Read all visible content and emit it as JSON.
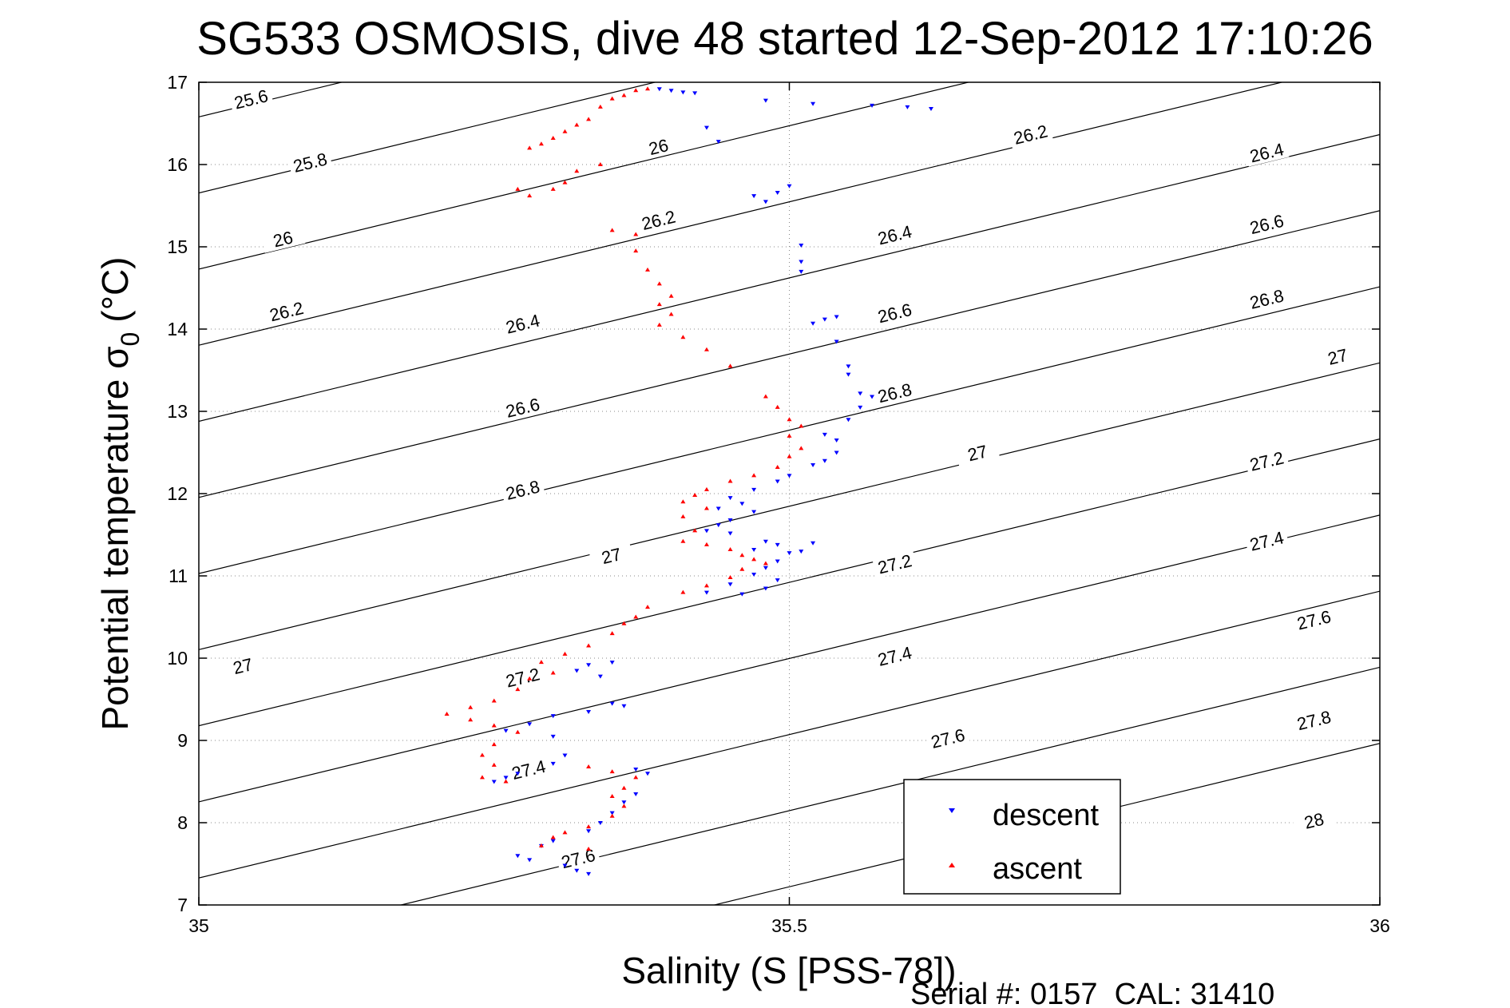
{
  "chart_data": {
    "type": "scatter",
    "title": "SG533 OSMOSIS, dive 48 started 12-Sep-2012 17:10:26",
    "xlabel": "Salinity (S [PSS-78])",
    "ylabel_main": "Potential temperature σ",
    "ylabel_sub": "0",
    "ylabel_unit": "(°C)",
    "footer": "Serial #: 0157  CAL: 31410",
    "xlim": [
      35,
      36
    ],
    "ylim": [
      7,
      17
    ],
    "x_ticks": [
      35,
      35.5,
      36
    ],
    "x_tick_labels": [
      "35",
      "35.5",
      "36"
    ],
    "y_ticks": [
      7,
      8,
      9,
      10,
      11,
      12,
      13,
      14,
      15,
      16,
      17
    ],
    "y_tick_labels": [
      "7",
      "8",
      "9",
      "10",
      "11",
      "12",
      "13",
      "14",
      "15",
      "16",
      "17"
    ],
    "grid": true,
    "legend_position": "bottom-right",
    "colors": {
      "descent": "#0000ff",
      "ascent": "#ff0000",
      "contour": "#000000"
    },
    "density_contours": {
      "levels": [
        25.6,
        25.8,
        26,
        26.2,
        26.4,
        26.6,
        26.8,
        27,
        27.2,
        27.4,
        27.6,
        27.8,
        28
      ],
      "labels": [
        {
          "text": "25.6",
          "x": 35.045,
          "y": 16.75
        },
        {
          "text": "25.8",
          "x": 35.095,
          "y": 15.98
        },
        {
          "text": "26",
          "x": 35.072,
          "y": 15.05
        },
        {
          "text": "26.2",
          "x": 35.075,
          "y": 14.17
        },
        {
          "text": "26",
          "x": 35.39,
          "y": 16.17
        },
        {
          "text": "26.2",
          "x": 35.39,
          "y": 15.28
        },
        {
          "text": "26.4",
          "x": 35.275,
          "y": 14.02
        },
        {
          "text": "26.6",
          "x": 35.275,
          "y": 13.0
        },
        {
          "text": "26.8",
          "x": 35.275,
          "y": 12.0
        },
        {
          "text": "27",
          "x": 35.35,
          "y": 11.2
        },
        {
          "text": "26.2",
          "x": 35.705,
          "y": 16.32
        },
        {
          "text": "26.4",
          "x": 35.59,
          "y": 15.1
        },
        {
          "text": "26.6",
          "x": 35.59,
          "y": 14.15
        },
        {
          "text": "26.8",
          "x": 35.59,
          "y": 13.18
        },
        {
          "text": "27",
          "x": 35.66,
          "y": 12.45
        },
        {
          "text": "27.2",
          "x": 35.59,
          "y": 11.1
        },
        {
          "text": "27.4",
          "x": 35.59,
          "y": 9.98
        },
        {
          "text": "27.6",
          "x": 35.635,
          "y": 8.98
        },
        {
          "text": "26.4",
          "x": 35.905,
          "y": 16.1
        },
        {
          "text": "26.6",
          "x": 35.905,
          "y": 15.23
        },
        {
          "text": "26.8",
          "x": 35.905,
          "y": 14.32
        },
        {
          "text": "27",
          "x": 35.965,
          "y": 13.62
        },
        {
          "text": "27.2",
          "x": 35.905,
          "y": 12.35
        },
        {
          "text": "27.4",
          "x": 35.905,
          "y": 11.38
        },
        {
          "text": "27.6",
          "x": 35.945,
          "y": 10.42
        },
        {
          "text": "27.8",
          "x": 35.945,
          "y": 9.2
        },
        {
          "text": "28",
          "x": 35.945,
          "y": 7.98
        },
        {
          "text": "27",
          "x": 35.038,
          "y": 9.86
        },
        {
          "text": "27.2",
          "x": 35.275,
          "y": 9.72
        },
        {
          "text": "27.4",
          "x": 35.28,
          "y": 8.6
        },
        {
          "text": "27.6",
          "x": 35.322,
          "y": 7.52
        }
      ]
    },
    "series": [
      {
        "name": "descent",
        "points": [
          [
            35.39,
            16.92
          ],
          [
            35.4,
            16.9
          ],
          [
            35.41,
            16.88
          ],
          [
            35.42,
            16.87
          ],
          [
            35.48,
            16.78
          ],
          [
            35.52,
            16.74
          ],
          [
            35.57,
            16.72
          ],
          [
            35.6,
            16.7
          ],
          [
            35.62,
            16.68
          ],
          [
            35.43,
            16.45
          ],
          [
            35.44,
            16.28
          ],
          [
            35.47,
            15.62
          ],
          [
            35.48,
            15.55
          ],
          [
            35.49,
            15.66
          ],
          [
            35.5,
            15.74
          ],
          [
            35.51,
            15.02
          ],
          [
            35.51,
            14.82
          ],
          [
            35.51,
            14.7
          ],
          [
            35.52,
            14.07
          ],
          [
            35.53,
            14.12
          ],
          [
            35.54,
            13.85
          ],
          [
            35.54,
            14.15
          ],
          [
            35.55,
            13.55
          ],
          [
            35.55,
            13.45
          ],
          [
            35.56,
            13.22
          ],
          [
            35.57,
            13.18
          ],
          [
            35.56,
            13.05
          ],
          [
            35.55,
            12.9
          ],
          [
            35.54,
            12.65
          ],
          [
            35.53,
            12.72
          ],
          [
            35.54,
            12.5
          ],
          [
            35.53,
            12.4
          ],
          [
            35.52,
            12.35
          ],
          [
            35.5,
            12.22
          ],
          [
            35.49,
            12.15
          ],
          [
            35.47,
            12.05
          ],
          [
            35.45,
            11.95
          ],
          [
            35.46,
            11.88
          ],
          [
            35.44,
            11.82
          ],
          [
            35.47,
            11.78
          ],
          [
            35.45,
            11.68
          ],
          [
            35.44,
            11.62
          ],
          [
            35.43,
            11.55
          ],
          [
            35.45,
            11.52
          ],
          [
            35.48,
            11.42
          ],
          [
            35.49,
            11.38
          ],
          [
            35.47,
            11.32
          ],
          [
            35.5,
            11.28
          ],
          [
            35.52,
            11.4
          ],
          [
            35.51,
            11.3
          ],
          [
            35.49,
            11.18
          ],
          [
            35.48,
            11.1
          ],
          [
            35.47,
            11.02
          ],
          [
            35.49,
            10.95
          ],
          [
            35.48,
            10.85
          ],
          [
            35.46,
            10.78
          ],
          [
            35.45,
            10.9
          ],
          [
            35.43,
            10.8
          ],
          [
            35.35,
            9.95
          ],
          [
            35.33,
            9.92
          ],
          [
            35.32,
            9.85
          ],
          [
            35.34,
            9.78
          ],
          [
            35.35,
            9.45
          ],
          [
            35.36,
            9.42
          ],
          [
            35.33,
            9.35
          ],
          [
            35.3,
            9.3
          ],
          [
            35.28,
            9.2
          ],
          [
            35.26,
            9.12
          ],
          [
            35.3,
            9.05
          ],
          [
            35.31,
            8.82
          ],
          [
            35.3,
            8.72
          ],
          [
            35.27,
            8.6
          ],
          [
            35.26,
            8.55
          ],
          [
            35.25,
            8.5
          ],
          [
            35.37,
            8.65
          ],
          [
            35.38,
            8.6
          ],
          [
            35.37,
            8.35
          ],
          [
            35.36,
            8.25
          ],
          [
            35.35,
            8.12
          ],
          [
            35.34,
            8.0
          ],
          [
            35.33,
            7.9
          ],
          [
            35.3,
            7.78
          ],
          [
            35.29,
            7.72
          ],
          [
            35.27,
            7.6
          ],
          [
            35.28,
            7.55
          ],
          [
            35.31,
            7.48
          ],
          [
            35.32,
            7.42
          ],
          [
            35.33,
            7.38
          ]
        ]
      },
      {
        "name": "ascent",
        "points": [
          [
            35.38,
            16.92
          ],
          [
            35.37,
            16.9
          ],
          [
            35.36,
            16.84
          ],
          [
            35.35,
            16.8
          ],
          [
            35.34,
            16.7
          ],
          [
            35.33,
            16.55
          ],
          [
            35.32,
            16.48
          ],
          [
            35.31,
            16.4
          ],
          [
            35.3,
            16.32
          ],
          [
            35.29,
            16.25
          ],
          [
            35.28,
            16.2
          ],
          [
            35.34,
            16.0
          ],
          [
            35.32,
            15.92
          ],
          [
            35.31,
            15.78
          ],
          [
            35.3,
            15.7
          ],
          [
            35.28,
            15.62
          ],
          [
            35.27,
            15.7
          ],
          [
            35.35,
            15.2
          ],
          [
            35.37,
            15.15
          ],
          [
            35.37,
            14.95
          ],
          [
            35.38,
            14.72
          ],
          [
            35.39,
            14.55
          ],
          [
            35.4,
            14.4
          ],
          [
            35.39,
            14.3
          ],
          [
            35.4,
            14.18
          ],
          [
            35.39,
            14.05
          ],
          [
            35.41,
            13.9
          ],
          [
            35.43,
            13.75
          ],
          [
            35.45,
            13.55
          ],
          [
            35.48,
            13.18
          ],
          [
            35.49,
            13.05
          ],
          [
            35.5,
            12.9
          ],
          [
            35.51,
            12.82
          ],
          [
            35.5,
            12.7
          ],
          [
            35.51,
            12.55
          ],
          [
            35.5,
            12.45
          ],
          [
            35.49,
            12.32
          ],
          [
            35.47,
            12.22
          ],
          [
            35.45,
            12.15
          ],
          [
            35.43,
            12.05
          ],
          [
            35.42,
            11.98
          ],
          [
            35.41,
            11.9
          ],
          [
            35.43,
            11.82
          ],
          [
            35.41,
            11.72
          ],
          [
            35.42,
            11.55
          ],
          [
            35.41,
            11.42
          ],
          [
            35.43,
            11.38
          ],
          [
            35.45,
            11.32
          ],
          [
            35.46,
            11.25
          ],
          [
            35.47,
            11.2
          ],
          [
            35.48,
            11.15
          ],
          [
            35.46,
            11.08
          ],
          [
            35.45,
            10.98
          ],
          [
            35.43,
            10.88
          ],
          [
            35.41,
            10.8
          ],
          [
            35.38,
            10.62
          ],
          [
            35.37,
            10.5
          ],
          [
            35.36,
            10.42
          ],
          [
            35.35,
            10.3
          ],
          [
            35.33,
            10.15
          ],
          [
            35.31,
            10.05
          ],
          [
            35.29,
            9.95
          ],
          [
            35.3,
            9.82
          ],
          [
            35.28,
            9.75
          ],
          [
            35.27,
            9.62
          ],
          [
            35.25,
            9.48
          ],
          [
            35.23,
            9.4
          ],
          [
            35.21,
            9.32
          ],
          [
            35.23,
            9.25
          ],
          [
            35.25,
            9.18
          ],
          [
            35.27,
            9.1
          ],
          [
            35.25,
            8.95
          ],
          [
            35.24,
            8.82
          ],
          [
            35.25,
            8.7
          ],
          [
            35.24,
            8.55
          ],
          [
            35.26,
            8.5
          ],
          [
            35.33,
            8.68
          ],
          [
            35.35,
            8.62
          ],
          [
            35.37,
            8.55
          ],
          [
            35.36,
            8.42
          ],
          [
            35.35,
            8.32
          ],
          [
            35.36,
            8.2
          ],
          [
            35.35,
            8.08
          ],
          [
            35.33,
            7.95
          ],
          [
            35.31,
            7.88
          ],
          [
            35.3,
            7.82
          ],
          [
            35.29,
            7.72
          ],
          [
            35.33,
            7.68
          ]
        ]
      }
    ]
  }
}
